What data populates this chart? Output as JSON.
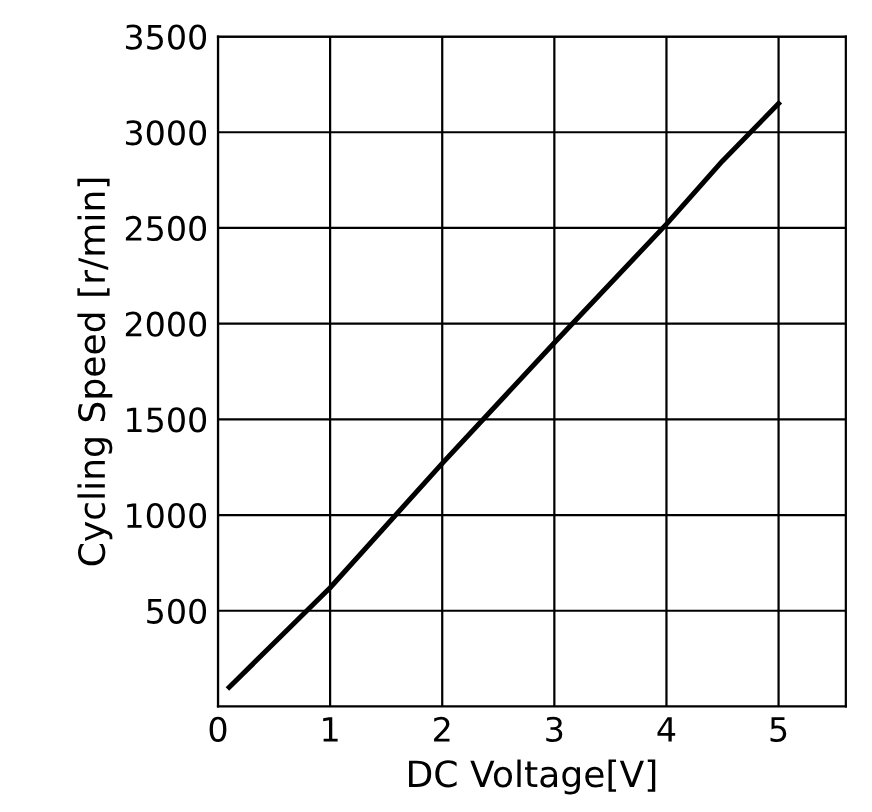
{
  "chart_data": {
    "type": "line",
    "xlabel": "DC Voltage[V]",
    "ylabel": "Cycling Speed [r/min]",
    "x": [
      0.1,
      1,
      2,
      3,
      4,
      4.5,
      5
    ],
    "series": [
      {
        "color": "#000000",
        "values": [
          100,
          620,
          1270,
          1900,
          2520,
          2850,
          3150
        ]
      }
    ],
    "xlim": [
      0,
      5.6
    ],
    "xticks": [
      0,
      1,
      2,
      3,
      4,
      5
    ],
    "ylim": [
      0,
      3500
    ],
    "yticks": [
      500,
      1000,
      1500,
      2000,
      2500,
      3000,
      3500
    ],
    "grid": true,
    "marker": "none",
    "line_style": "solid"
  }
}
